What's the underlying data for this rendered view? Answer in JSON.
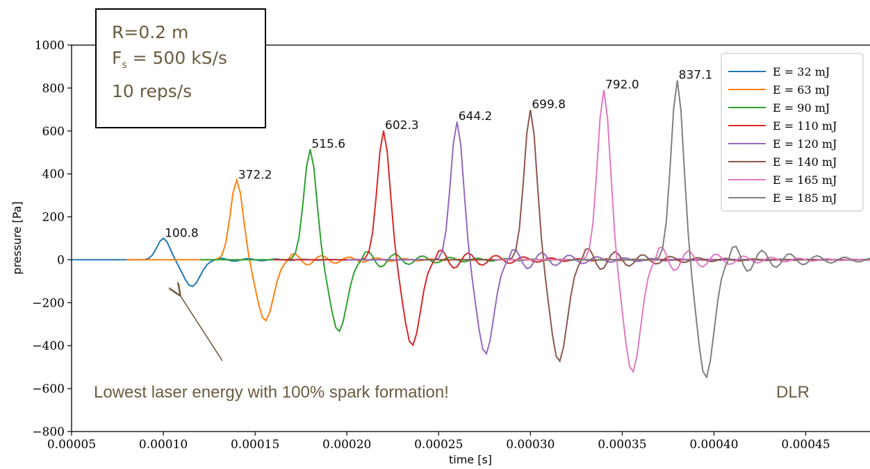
{
  "info_box": {
    "radius": "R=0.2 m",
    "fs_symbol": "F",
    "fs_sub": "s",
    "fs_value": " = 500 kS/s",
    "reps": "10 reps/s"
  },
  "annotation": "Lowest laser energy with 100% spark formation!",
  "watermark": "DLR",
  "colors": {
    "text_annot": "#6b5b3e",
    "arrow": "#6b5b3e"
  },
  "chart_data": {
    "type": "line",
    "xlabel": "time [s]",
    "ylabel": "pressure [Pa]",
    "xlim": [
      5e-05,
      0.000485
    ],
    "ylim": [
      -800,
      1000
    ],
    "xticks": [
      5e-05,
      0.0001,
      0.00015,
      0.0002,
      0.00025,
      0.0003,
      0.00035,
      0.0004,
      0.00045
    ],
    "xtick_labels": [
      "0.00005",
      "0.00010",
      "0.00015",
      "0.00020",
      "0.00025",
      "0.00030",
      "0.00035",
      "0.00040",
      "0.00045"
    ],
    "yticks": [
      -800,
      -600,
      -400,
      -200,
      0,
      200,
      400,
      600,
      800,
      1000
    ],
    "ytick_labels": [
      "−800",
      "−600",
      "−400",
      "−200",
      "0",
      "200",
      "400",
      "600",
      "800",
      "1000"
    ],
    "legend_position": "top-right",
    "grid": false,
    "series": [
      {
        "name": "E = 32 mJ",
        "color": "#1f77b4",
        "peak_t": 0.0001,
        "peak": 100.8,
        "trough": -125,
        "label": "100.8"
      },
      {
        "name": "E = 63 mJ",
        "color": "#ff7f0e",
        "peak_t": 0.00014,
        "peak": 372.2,
        "trough": -285,
        "label": "372.2"
      },
      {
        "name": "E = 90 mJ",
        "color": "#2ca02c",
        "peak_t": 0.00018,
        "peak": 515.6,
        "trough": -335,
        "label": "515.6"
      },
      {
        "name": "E = 110 mJ",
        "color": "#d62728",
        "peak_t": 0.00022,
        "peak": 602.3,
        "trough": -400,
        "label": "602.3"
      },
      {
        "name": "E = 120 mJ",
        "color": "#9467bd",
        "peak_t": 0.00026,
        "peak": 644.2,
        "trough": -440,
        "label": "644.2"
      },
      {
        "name": "E = 140 mJ",
        "color": "#8c564b",
        "peak_t": 0.0003,
        "peak": 699.8,
        "trough": -475,
        "label": "699.8"
      },
      {
        "name": "E = 165 mJ",
        "color": "#e377c2",
        "peak_t": 0.00034,
        "peak": 792.0,
        "trough": -525,
        "label": "792.0"
      },
      {
        "name": "E = 185 mJ",
        "color": "#7f7f7f",
        "peak_t": 0.00038,
        "peak": 837.1,
        "trough": -550,
        "label": "837.1"
      }
    ]
  }
}
